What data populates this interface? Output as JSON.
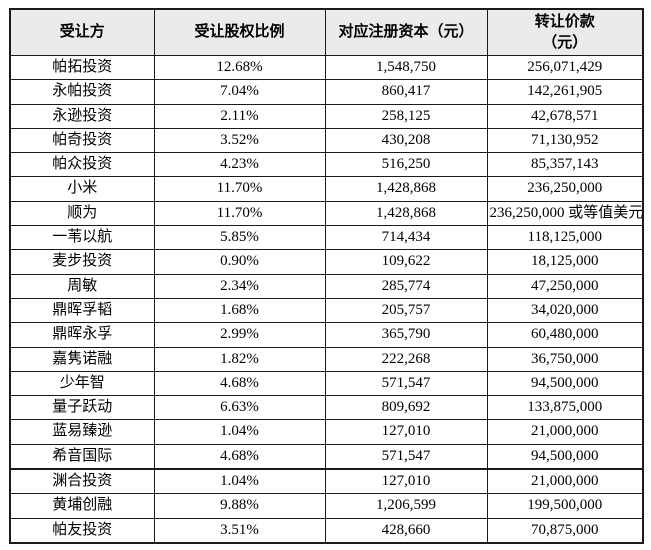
{
  "table": {
    "headers": {
      "transferee": "受让方",
      "equity_ratio": "受让股权比例",
      "registered_capital": "对应注册资本（元）",
      "transfer_price_line1": "转让价款",
      "transfer_price_line2": "（元）"
    },
    "header_bg_color": "#ebebeb",
    "border_color": "#1a1a1a",
    "rows": [
      {
        "name": "帕拓投资",
        "ratio": "12.68%",
        "capital": "1,548,750",
        "price": "256,071,429"
      },
      {
        "name": "永帕投资",
        "ratio": "7.04%",
        "capital": "860,417",
        "price": "142,261,905"
      },
      {
        "name": "永逊投资",
        "ratio": "2.11%",
        "capital": "258,125",
        "price": "42,678,571"
      },
      {
        "name": "帕奇投资",
        "ratio": "3.52%",
        "capital": "430,208",
        "price": "71,130,952"
      },
      {
        "name": "帕众投资",
        "ratio": "4.23%",
        "capital": "516,250",
        "price": "85,357,143"
      },
      {
        "name": "小米",
        "ratio": "11.70%",
        "capital": "1,428,868",
        "price": "236,250,000"
      },
      {
        "name": "顺为",
        "ratio": "11.70%",
        "capital": "1,428,868",
        "price": "236,250,000 或等值美元"
      },
      {
        "name": "一苇以航",
        "ratio": "5.85%",
        "capital": "714,434",
        "price": "118,125,000"
      },
      {
        "name": "麦步投资",
        "ratio": "0.90%",
        "capital": "109,622",
        "price": "18,125,000"
      },
      {
        "name": "周敏",
        "ratio": "2.34%",
        "capital": "285,774",
        "price": "47,250,000"
      },
      {
        "name": "鼎晖孚韬",
        "ratio": "1.68%",
        "capital": "205,757",
        "price": "34,020,000"
      },
      {
        "name": "鼎晖永孚",
        "ratio": "2.99%",
        "capital": "365,790",
        "price": "60,480,000"
      },
      {
        "name": "嘉隽诺融",
        "ratio": "1.82%",
        "capital": "222,268",
        "price": "36,750,000"
      },
      {
        "name": "少年智",
        "ratio": "4.68%",
        "capital": "571,547",
        "price": "94,500,000"
      },
      {
        "name": "量子跃动",
        "ratio": "6.63%",
        "capital": "809,692",
        "price": "133,875,000"
      },
      {
        "name": "蓝易臻逊",
        "ratio": "1.04%",
        "capital": "127,010",
        "price": "21,000,000"
      },
      {
        "name": "希音国际",
        "ratio": "4.68%",
        "capital": "571,547",
        "price": "94,500,000"
      },
      {
        "name": "渊合投资",
        "ratio": "1.04%",
        "capital": "127,010",
        "price": "21,000,000",
        "section_break": true
      },
      {
        "name": "黄埔创融",
        "ratio": "9.88%",
        "capital": "1,206,599",
        "price": "199,500,000"
      },
      {
        "name": "帕友投资",
        "ratio": "3.51%",
        "capital": "428,660",
        "price": "70,875,000"
      }
    ]
  }
}
